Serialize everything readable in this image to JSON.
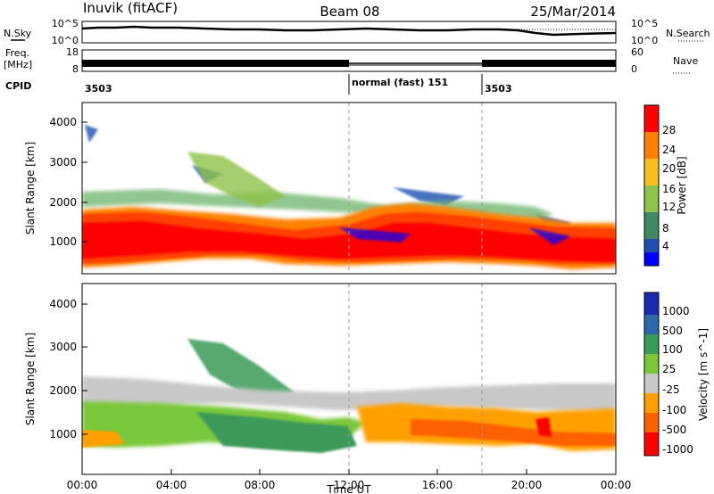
{
  "header": {
    "station": "Inuvik (fitACF)",
    "beam": "Beam 08",
    "date": "25/Mar/2014"
  },
  "aux_panel": {
    "nsky_label": "N.Sky",
    "nsky_ticks": [
      "10^5",
      "10^0"
    ],
    "nsearch_label": "N.Search",
    "nsearch_ticks": [
      "10^5",
      "10^0"
    ],
    "freq_label": "Freq.",
    "freq_unit": "[MHz]",
    "freq_ticks": [
      "18",
      "8"
    ],
    "nave_label": "Nave",
    "nave_ticks": [
      "60",
      "0"
    ],
    "cpid_label": "CPID",
    "cpid_segments": [
      {
        "label": "3503",
        "start_hour": 0
      },
      {
        "label": "normal (fast) 151",
        "start_hour": 12
      },
      {
        "label": "3503",
        "start_hour": 18
      }
    ]
  },
  "time_axis": {
    "label": "Time UT",
    "ticks": [
      "00:00",
      "04:00",
      "08:00",
      "12:00",
      "16:00",
      "20:00",
      "00:00"
    ]
  },
  "chart_data": [
    {
      "type": "heatmap",
      "title": "",
      "xlabel": "Time UT",
      "ylabel": "Slant Range [km]",
      "xlim": [
        0,
        24
      ],
      "ylim": [
        200,
        4500
      ],
      "y_ticks": [
        "1000",
        "2000",
        "3000",
        "4000"
      ],
      "colorbar": {
        "label": "Power [dB]",
        "ticks": [
          "4",
          "8",
          "12",
          "16",
          "20",
          "24",
          "28"
        ],
        "range": [
          0,
          30
        ],
        "colors": [
          "#0000ff",
          "#1f4fb0",
          "#3e8a66",
          "#8fc24a",
          "#f5c020",
          "#ff8000",
          "#ff3000",
          "#ff0000"
        ]
      },
      "series": [
        {
          "y_center_km": [
            1200,
            1300,
            1250,
            1150,
            1000,
            950,
            1100,
            1300,
            1400,
            1350,
            1250,
            1300,
            1200
          ],
          "x_hours": [
            0,
            2,
            4,
            6,
            8,
            10,
            12,
            14,
            16,
            18,
            20,
            22,
            24
          ]
        }
      ]
    },
    {
      "type": "heatmap",
      "title": "",
      "xlabel": "Time UT",
      "ylabel": "Slant Range [km]",
      "xlim": [
        0,
        24
      ],
      "ylim": [
        200,
        4500
      ],
      "y_ticks": [
        "1000",
        "2000",
        "3000",
        "4000"
      ],
      "colorbar": {
        "label": "Velocity [m s^-1]",
        "ticks": [
          "1000",
          "500",
          "100",
          "25",
          "-25",
          "-100",
          "-500",
          "-1000"
        ],
        "range": [
          -1000,
          1000
        ],
        "colors": [
          "#ff0000",
          "#ff6000",
          "#ffa000",
          "#c8c8c8",
          "#7ac83a",
          "#3a9a5a",
          "#2a6aaa",
          "#1a2aaa"
        ]
      }
    }
  ]
}
